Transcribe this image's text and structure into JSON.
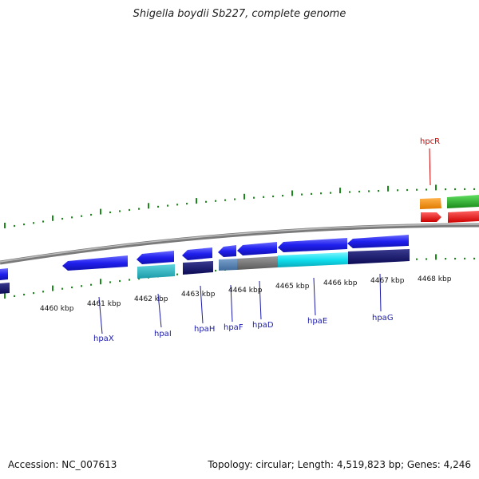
{
  "title": "Shigella boydii Sb227, complete genome",
  "footer": {
    "accession": "Accession: NC_007613",
    "summary": "Topology: circular; Length: 4,519,823 bp; Genes: 4,246"
  },
  "colors": {
    "tick": "#1a8a1a",
    "backbone": "#888888",
    "label_blue": "#1a1aaa",
    "label_red": "#cc0000"
  },
  "kbp_labels": [
    "4460 kbp",
    "4461 kbp",
    "4462 kbp",
    "4463 kbp",
    "4464 kbp",
    "4465 kbp",
    "4466 kbp",
    "4467 kbp",
    "4468 kbp"
  ],
  "gene_labels": [
    "hpaX",
    "hpaI",
    "hpaH",
    "hpaF",
    "hpaD",
    "hpaE",
    "hpaG",
    "hpcR"
  ]
}
